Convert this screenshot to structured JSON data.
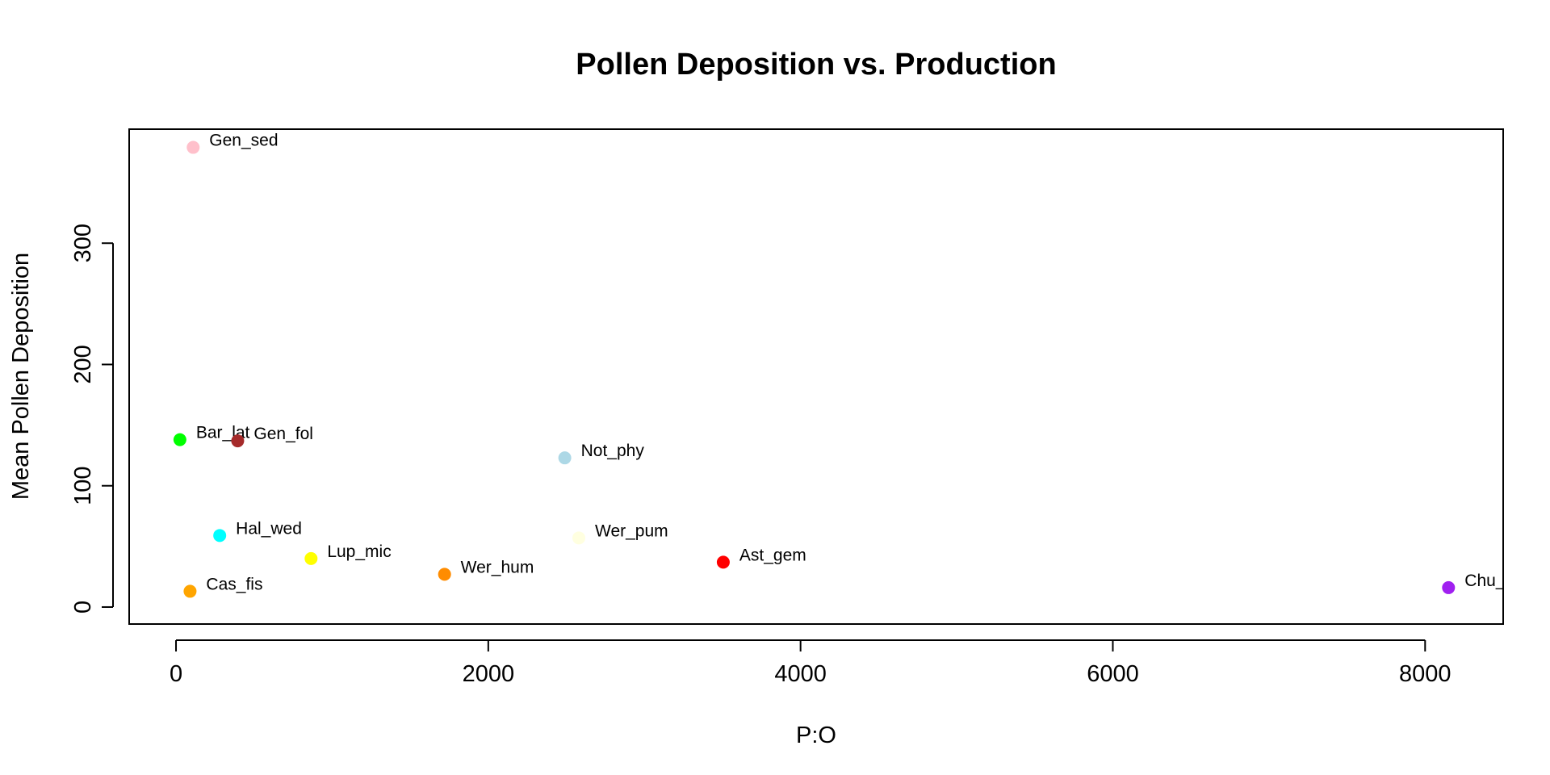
{
  "chart_data": {
    "type": "scatter",
    "title": "Pollen Deposition vs. Production",
    "xlabel": "P:O",
    "ylabel": "Mean Pollen Deposition",
    "xlim": [
      -300,
      8500
    ],
    "ylim": [
      -14,
      394
    ],
    "x_ticks": [
      0,
      2000,
      4000,
      6000,
      8000
    ],
    "y_ticks": [
      0,
      100,
      200,
      300
    ],
    "x_tick_labels": [
      "0",
      "2000",
      "4000",
      "6000",
      "8000"
    ],
    "y_tick_labels": [
      "0",
      "100",
      "200",
      "300"
    ],
    "grid": false,
    "legend": "none",
    "points": [
      {
        "label": "Gen_sed",
        "x": 110,
        "y": 379,
        "color": "#ffc0cb"
      },
      {
        "label": "Bar_lat",
        "x": 25,
        "y": 138,
        "color": "#00ff00"
      },
      {
        "label": "Gen_fol",
        "x": 395,
        "y": 137,
        "color": "#a52a2a"
      },
      {
        "label": "Not_phy",
        "x": 2490,
        "y": 123,
        "color": "#add8e6"
      },
      {
        "label": "Hal_wed",
        "x": 280,
        "y": 59,
        "color": "#00ffff"
      },
      {
        "label": "Wer_pum",
        "x": 2580,
        "y": 57,
        "color": "#ffffe0"
      },
      {
        "label": "Lup_mic",
        "x": 865,
        "y": 40,
        "color": "#ffff00"
      },
      {
        "label": "Ast_gem",
        "x": 3505,
        "y": 37,
        "color": "#ff0000"
      },
      {
        "label": "Wer_hum",
        "x": 1720,
        "y": 27,
        "color": "#ff8c00"
      },
      {
        "label": "Cas_fis",
        "x": 90,
        "y": 13,
        "color": "#ffa500"
      },
      {
        "label": "Chu_",
        "x": 8150,
        "y": 16,
        "color": "#a020f0"
      }
    ]
  }
}
